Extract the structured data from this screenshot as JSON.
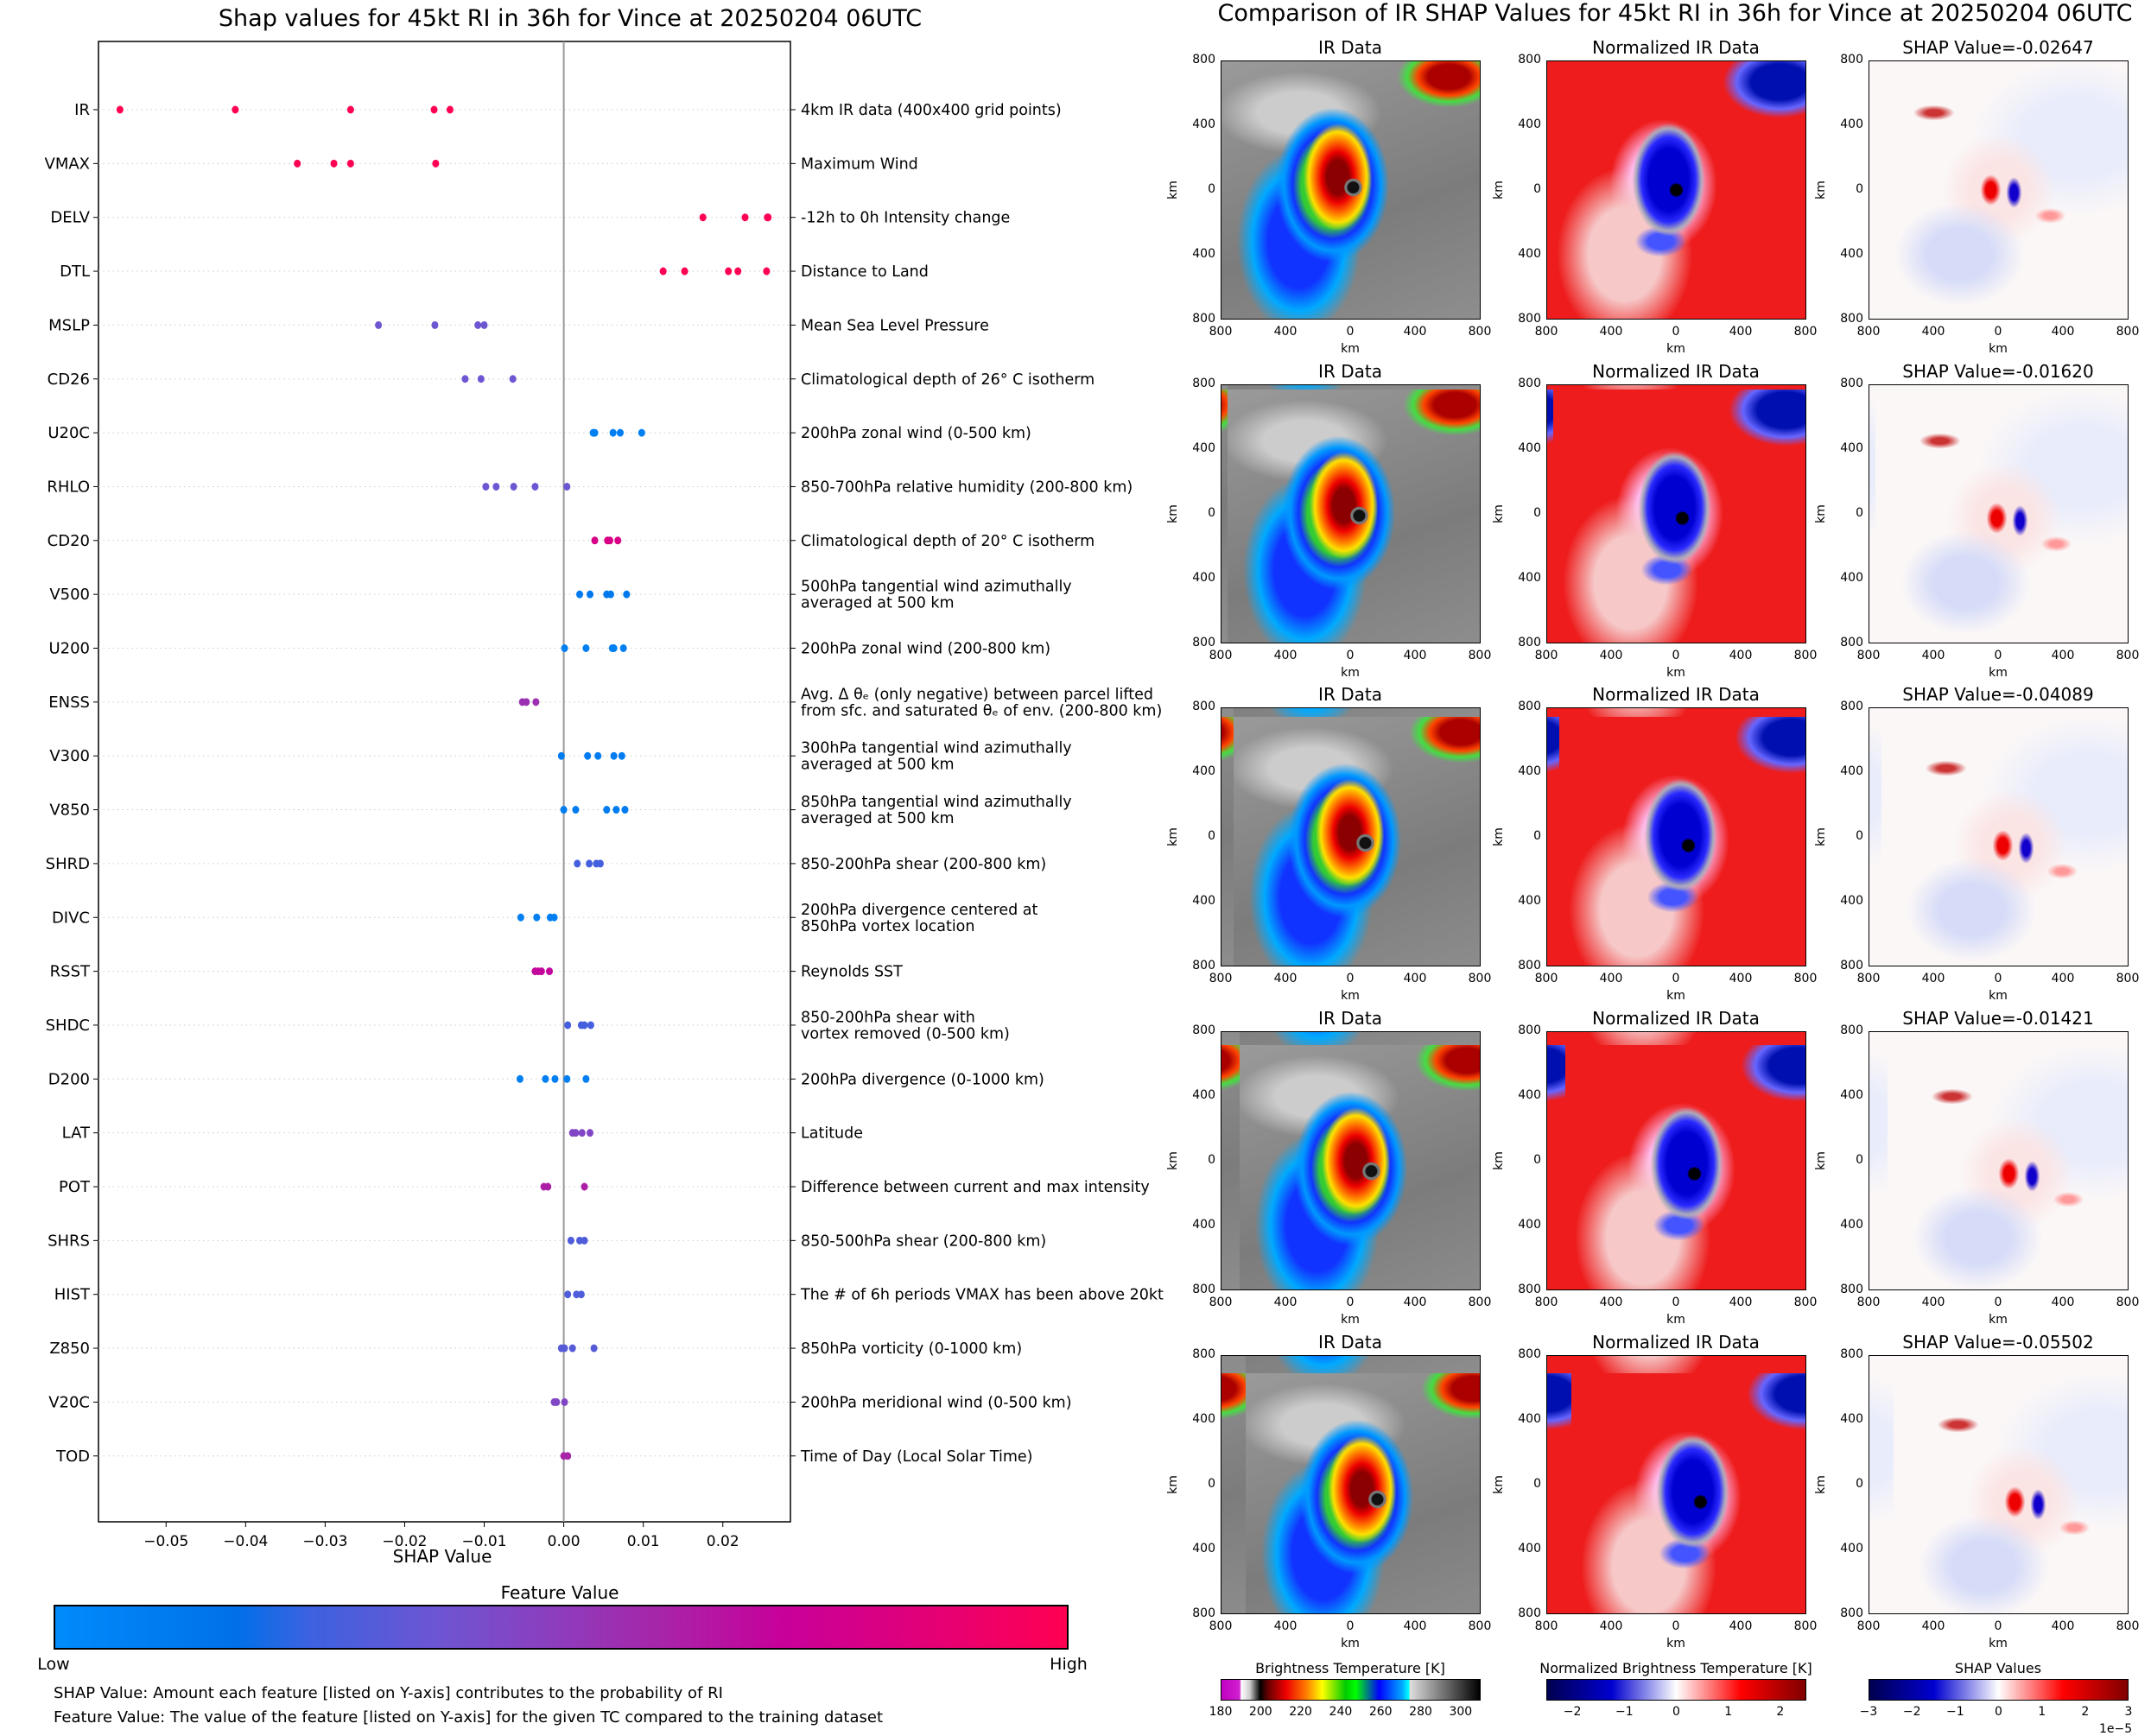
{
  "chart_data": [
    {
      "type": "scatter",
      "title": "Shap values for 45kt RI in 36h for Vince at 20250204 06UTC",
      "xlabel": "SHAP Value",
      "xlim": [
        -0.0585,
        0.0285
      ],
      "xticks": [
        -0.05,
        -0.04,
        -0.03,
        -0.02,
        -0.01,
        0.0,
        0.01,
        0.02
      ],
      "xtick_labels": [
        "−0.05",
        "−0.04",
        "−0.03",
        "−0.02",
        "−0.01",
        "0.00",
        "0.01",
        "0.02"
      ],
      "grid": "horizontal dotted",
      "colorbar": {
        "title": "Feature Value",
        "low_label": "Low",
        "high_label": "High",
        "low_color": "#008bfb",
        "high_color": "#ff0052"
      },
      "features": [
        {
          "name": "IR",
          "description": "4km IR data (400x400 grid points)",
          "feature_value": 1.0,
          "shap": [
            -0.0558,
            -0.0413,
            -0.0268,
            -0.0163,
            -0.0143
          ]
        },
        {
          "name": "VMAX",
          "description": "Maximum Wind",
          "feature_value": 1.0,
          "shap": [
            -0.0335,
            -0.0289,
            -0.0268,
            -0.0161
          ]
        },
        {
          "name": "DELV",
          "description": "-12h to 0h Intensity change",
          "feature_value": 1.0,
          "shap": [
            0.0175,
            0.0228,
            0.0256,
            0.0257
          ]
        },
        {
          "name": "DTL",
          "description": "Distance to Land",
          "feature_value": 1.0,
          "shap": [
            0.0125,
            0.0152,
            0.0207,
            0.0219,
            0.0255
          ]
        },
        {
          "name": "MSLP",
          "description": "Mean Sea Level Pressure",
          "feature_value": 0.38,
          "shap": [
            -0.0233,
            -0.0162,
            -0.0108,
            -0.01
          ]
        },
        {
          "name": "CD26",
          "description": "Climatological depth of 26° C isotherm",
          "feature_value": 0.38,
          "shap": [
            -0.0124,
            -0.0104,
            -0.0064
          ]
        },
        {
          "name": "U20C",
          "description": "200hPa zonal wind (0-500 km)",
          "feature_value": 0.08,
          "shap": [
            0.0037,
            0.0039,
            0.0062,
            0.0071,
            0.0098
          ]
        },
        {
          "name": "RHLO",
          "description": "850-700hPa relative humidity (200-800 km)",
          "feature_value": 0.38,
          "shap": [
            -0.0098,
            -0.0085,
            -0.0063,
            -0.0036,
            0.0004
          ]
        },
        {
          "name": "CD20",
          "description": "Climatological depth of 20° C isotherm",
          "feature_value": 0.8,
          "shap": [
            0.0039,
            0.0055,
            0.0058,
            0.0068
          ]
        },
        {
          "name": "V500",
          "description": "500hPa tangential wind azimuthally\naveraged at 500 km",
          "feature_value": 0.12,
          "shap": [
            0.002,
            0.0033,
            0.0054,
            0.0059,
            0.0079
          ]
        },
        {
          "name": "U200",
          "description": "200hPa zonal wind (200-800 km)",
          "feature_value": 0.08,
          "shap": [
            0.0001,
            0.0028,
            0.0061,
            0.0063,
            0.0075
          ]
        },
        {
          "name": "ENSS",
          "description": "Avg. Δ θₑ (only negative) between parcel lifted\nfrom sfc. and saturated θₑ of env. (200-800 km)",
          "feature_value": 0.55,
          "shap": [
            -0.0052,
            -0.0047,
            -0.0035
          ]
        },
        {
          "name": "V300",
          "description": "300hPa tangential wind azimuthally\naveraged at 500 km",
          "feature_value": 0.1,
          "shap": [
            -0.0003,
            0.003,
            0.0043,
            0.0063,
            0.0073
          ]
        },
        {
          "name": "V850",
          "description": "850hPa tangential wind azimuthally\naveraged at 500 km",
          "feature_value": 0.1,
          "shap": [
            0.0,
            0.0015,
            0.0054,
            0.0066,
            0.0077
          ]
        },
        {
          "name": "SHRD",
          "description": "850-200hPa shear (200-800 km)",
          "feature_value": 0.27,
          "shap": [
            0.0017,
            0.0032,
            0.0041,
            0.0046
          ]
        },
        {
          "name": "DIVC",
          "description": "200hPa divergence centered at\n850hPa vortex location",
          "feature_value": 0.08,
          "shap": [
            -0.0054,
            -0.0034,
            -0.0017,
            -0.0012
          ]
        },
        {
          "name": "RSST",
          "description": "Reynolds SST",
          "feature_value": 0.7,
          "shap": [
            -0.0036,
            -0.0032,
            -0.0028,
            -0.0018
          ]
        },
        {
          "name": "SHDC",
          "description": "850-200hPa shear with\nvortex removed (0-500 km)",
          "feature_value": 0.27,
          "shap": [
            0.0005,
            0.0022,
            0.0026,
            0.0034
          ]
        },
        {
          "name": "D200",
          "description": "200hPa divergence (0-1000 km)",
          "feature_value": 0.08,
          "shap": [
            -0.0055,
            -0.0023,
            -0.0011,
            0.0004,
            0.0028
          ]
        },
        {
          "name": "LAT",
          "description": "Latitude",
          "feature_value": 0.45,
          "shap": [
            0.0011,
            0.0015,
            0.0023,
            0.0033
          ]
        },
        {
          "name": "POT",
          "description": "Difference between current and max intensity",
          "feature_value": 0.62,
          "shap": [
            -0.0025,
            -0.002,
            0.0026
          ]
        },
        {
          "name": "SHRS",
          "description": "850-500hPa shear (200-800 km)",
          "feature_value": 0.3,
          "shap": [
            0.0009,
            0.002,
            0.0026
          ]
        },
        {
          "name": "HIST",
          "description": "The # of 6h periods VMAX has been above 20kt",
          "feature_value": 0.3,
          "shap": [
            0.0005,
            0.0016,
            0.0022
          ]
        },
        {
          "name": "Z850",
          "description": "850hPa vorticity (0-1000 km)",
          "feature_value": 0.32,
          "shap": [
            -0.0003,
            0.0001,
            0.0011,
            0.0038
          ]
        },
        {
          "name": "V20C",
          "description": "200hPa meridional wind (0-500 km)",
          "feature_value": 0.45,
          "shap": [
            -0.0012,
            -0.0009,
            0.0001
          ]
        },
        {
          "name": "TOD",
          "description": "Time of Day (Local Solar Time)",
          "feature_value": 0.6,
          "shap": [
            0.0,
            0.0005
          ]
        }
      ],
      "footnotes": [
        "SHAP Value: Amount each feature [listed on Y-axis] contributes to the probability of RI",
        "Feature Value: The value of the feature [listed on Y-axis] for the given TC compared to the training dataset"
      ]
    },
    {
      "type": "heatmap",
      "title": "Comparison of IR SHAP Values for 45kt RI in 36h for Vince at 20250204 06UTC",
      "column_titles": [
        "IR Data",
        "Normalized IR Data"
      ],
      "shap_prefix": "SHAP Value=",
      "shap_values": [
        "-0.02647",
        "-0.01620",
        "-0.04089",
        "-0.01421",
        "-0.05502"
      ],
      "axis_label": "km",
      "tick_labels": [
        "800",
        "400",
        "0",
        "400",
        "800"
      ],
      "colorbars": [
        {
          "title": "Brightness Temperature [K]",
          "ticks": [
            "180",
            "200",
            "220",
            "240",
            "260",
            "280",
            "300"
          ],
          "range": [
            180,
            310
          ]
        },
        {
          "title": "Normalized Brightness Temperature [K]",
          "ticks": [
            "−2",
            "−1",
            "0",
            "1",
            "2"
          ],
          "range": [
            -2.5,
            2.5
          ]
        },
        {
          "title": "SHAP Values",
          "ticks": [
            "−3",
            "−2",
            "−1",
            "0",
            "1",
            "2",
            "3"
          ],
          "range": [
            -3,
            3
          ],
          "offset_label": "1e−5"
        }
      ]
    }
  ]
}
